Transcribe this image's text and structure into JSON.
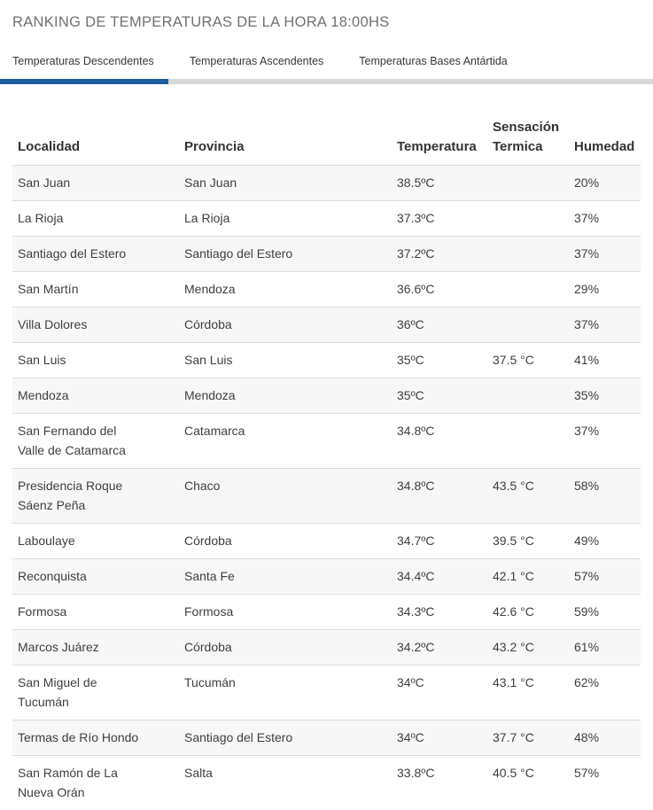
{
  "page": {
    "title": "RANKING DE TEMPERATURAS DE LA HORA 18:00HS"
  },
  "tabs": [
    {
      "label": "Temperaturas Descendentes",
      "active": true
    },
    {
      "label": "Temperaturas Ascendentes",
      "active": false
    },
    {
      "label": "Temperaturas Bases Antártida",
      "active": false
    }
  ],
  "colors": {
    "accent": "#1d5c9e",
    "tab_track": "#d8d8d8",
    "row_stripe": "#f7f7f7",
    "row_border": "#dcdcdc",
    "title_text": "#717171",
    "body_text": "#3f3f3f"
  },
  "table": {
    "columns": [
      "Localidad",
      "Provincia",
      "Temperatura",
      "Sensación Termica",
      "Humedad"
    ],
    "rows": [
      {
        "localidad": "San Juan",
        "provincia": "San Juan",
        "temperatura": "38.5ºC",
        "sensacion": "",
        "humedad": "20%"
      },
      {
        "localidad": "La Rioja",
        "provincia": "La Rioja",
        "temperatura": "37.3ºC",
        "sensacion": "",
        "humedad": "37%"
      },
      {
        "localidad": "Santiago del Estero",
        "provincia": "Santiago del Estero",
        "temperatura": "37.2ºC",
        "sensacion": "",
        "humedad": "37%"
      },
      {
        "localidad": "San Martín",
        "provincia": "Mendoza",
        "temperatura": "36.6ºC",
        "sensacion": "",
        "humedad": "29%"
      },
      {
        "localidad": "Villa Dolores",
        "provincia": "Córdoba",
        "temperatura": "36ºC",
        "sensacion": "",
        "humedad": "37%"
      },
      {
        "localidad": "San Luis",
        "provincia": "San Luis",
        "temperatura": "35ºC",
        "sensacion": "37.5 °C",
        "humedad": "41%"
      },
      {
        "localidad": "Mendoza",
        "provincia": "Mendoza",
        "temperatura": "35ºC",
        "sensacion": "",
        "humedad": "35%"
      },
      {
        "localidad": "San Fernando del Valle de Catamarca",
        "provincia": "Catamarca",
        "temperatura": "34.8ºC",
        "sensacion": "",
        "humedad": "37%"
      },
      {
        "localidad": "Presidencia Roque Sáenz Peña",
        "provincia": "Chaco",
        "temperatura": "34.8ºC",
        "sensacion": "43.5 °C",
        "humedad": "58%"
      },
      {
        "localidad": "Laboulaye",
        "provincia": "Córdoba",
        "temperatura": "34.7ºC",
        "sensacion": "39.5 °C",
        "humedad": "49%"
      },
      {
        "localidad": "Reconquista",
        "provincia": "Santa Fe",
        "temperatura": "34.4ºC",
        "sensacion": "42.1 °C",
        "humedad": "57%"
      },
      {
        "localidad": "Formosa",
        "provincia": "Formosa",
        "temperatura": "34.3ºC",
        "sensacion": "42.6 °C",
        "humedad": "59%"
      },
      {
        "localidad": "Marcos Juárez",
        "provincia": "Córdoba",
        "temperatura": "34.2ºC",
        "sensacion": "43.2 °C",
        "humedad": "61%"
      },
      {
        "localidad": "San Miguel de Tucumán",
        "provincia": "Tucumán",
        "temperatura": "34ºC",
        "sensacion": "43.1 °C",
        "humedad": "62%"
      },
      {
        "localidad": "Termas de Río Hondo",
        "provincia": "Santiago del Estero",
        "temperatura": "34ºC",
        "sensacion": "37.7 °C",
        "humedad": "48%"
      },
      {
        "localidad": "San Ramón de La Nueva Orán",
        "provincia": "Salta",
        "temperatura": "33.8ºC",
        "sensacion": "40.5 °C",
        "humedad": "57%"
      }
    ]
  }
}
